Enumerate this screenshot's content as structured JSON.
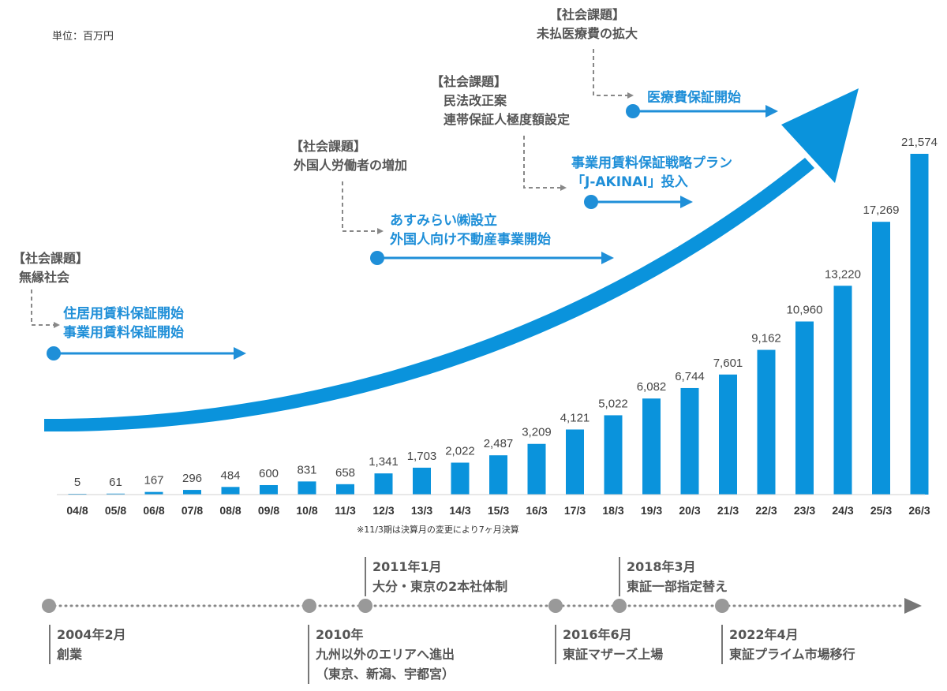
{
  "unit_label": "単位：百万円",
  "footnote": "※11/3期は決算月の変更により7ヶ月決算",
  "chart_data": {
    "type": "bar",
    "title": "",
    "xlabel": "",
    "ylabel": "",
    "categories": [
      "04/8",
      "05/8",
      "06/8",
      "07/8",
      "08/8",
      "09/8",
      "10/8",
      "11/3",
      "12/3",
      "13/3",
      "14/3",
      "15/3",
      "16/3",
      "17/3",
      "18/3",
      "19/3",
      "20/3",
      "21/3",
      "22/3",
      "23/3",
      "24/3",
      "25/3",
      "26/3"
    ],
    "values": [
      5,
      61,
      167,
      296,
      484,
      600,
      831,
      658,
      1341,
      1703,
      2022,
      2487,
      3209,
      4121,
      5022,
      6082,
      6744,
      7601,
      9162,
      10960,
      13220,
      17269,
      21574
    ],
    "value_labels": [
      "5",
      "61",
      "167",
      "296",
      "484",
      "600",
      "831",
      "658",
      "1,341",
      "1,703",
      "2,022",
      "2,487",
      "3,209",
      "4,121",
      "5,022",
      "6,082",
      "6,744",
      "7,601",
      "9,162",
      "10,960",
      "13,220",
      "17,269",
      "21,574"
    ],
    "ylim": [
      0,
      21574
    ],
    "grid": false,
    "color": "#0a93dc"
  },
  "social_issues": [
    {
      "tag": "【社会課題】",
      "text": "無縁社会"
    },
    {
      "tag": "【社会課題】",
      "text": "外国人労働者の増加"
    },
    {
      "tag": "【社会課題】",
      "line1": "民法改正案",
      "line2": "連帯保証人極度額設定"
    },
    {
      "tag": "【社会課題】",
      "text": "未払医療費の拡大"
    }
  ],
  "milestones": [
    {
      "line1": "住居用賃料保証開始",
      "line2": "事業用賃料保証開始"
    },
    {
      "line1": "あすみらい㈱設立",
      "line2": "外国人向け不動産事業開始"
    },
    {
      "line1": "事業用賃料保証戦略プラン",
      "line2": "「J-AKINAI」投入"
    },
    {
      "line1": "医療費保証開始"
    }
  ],
  "timeline": [
    {
      "date": "2004年2月",
      "text": "創業"
    },
    {
      "date": "2010年",
      "line1": "九州以外のエリアへ進出",
      "line2": "（東京、新潟、宇都宮）"
    },
    {
      "date": "2011年1月",
      "text": "大分・東京の2本社体制"
    },
    {
      "date": "2016年6月",
      "text": "東証マザーズ上場"
    },
    {
      "date": "2018年3月",
      "text": "東証一部指定替え"
    },
    {
      "date": "2022年4月",
      "text": "東証プライム市場移行"
    }
  ]
}
